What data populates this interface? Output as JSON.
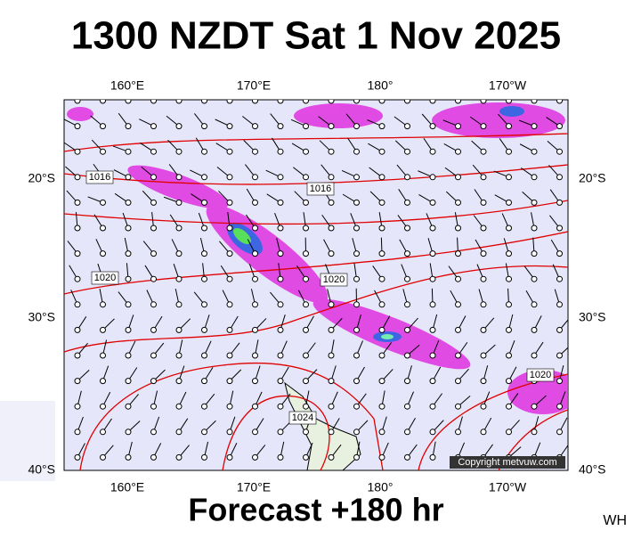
{
  "header": {
    "title": "1300 NZDT Sat 1 Nov 2025"
  },
  "map": {
    "top_labels": [
      "160°E",
      "170°E",
      "180°",
      "170°W"
    ],
    "bottom_labels": [
      "160°E",
      "170°E",
      "180°",
      "170°W"
    ],
    "left_labels": [
      "20°S",
      "30°S",
      "40°S"
    ],
    "right_labels": [
      "20°S",
      "30°S",
      "40°S"
    ],
    "isobar_labels": [
      "1016",
      "1016",
      "1020",
      "1020",
      "1020",
      "1024"
    ],
    "copyright": "Copyright metvuw.com"
  },
  "footer": {
    "forecast": "Forecast +180 hr",
    "code": "WH"
  }
}
